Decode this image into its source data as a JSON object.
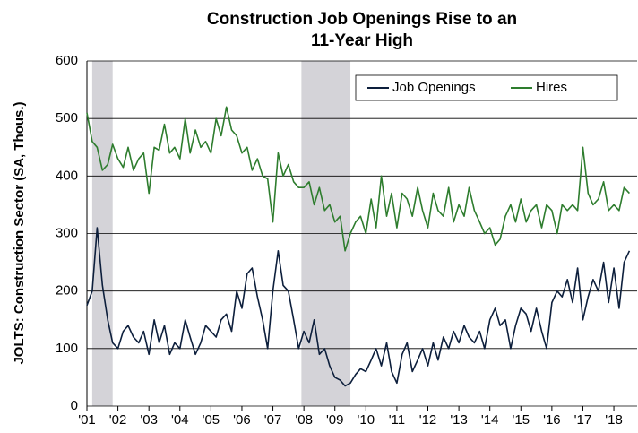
{
  "chart_data": {
    "type": "line",
    "title": [
      "Construction Job Openings Rise to an",
      "11-Year High"
    ],
    "y_label": "JOLTS: Construction Sector (SA, Thous.)",
    "x": [
      2001,
      2001.17,
      2001.33,
      2001.5,
      2001.67,
      2001.83,
      2002,
      2002.17,
      2002.33,
      2002.5,
      2002.67,
      2002.83,
      2003,
      2003.17,
      2003.33,
      2003.5,
      2003.67,
      2003.83,
      2004,
      2004.17,
      2004.33,
      2004.5,
      2004.67,
      2004.83,
      2005,
      2005.17,
      2005.33,
      2005.5,
      2005.67,
      2005.83,
      2006,
      2006.17,
      2006.33,
      2006.5,
      2006.67,
      2006.83,
      2007,
      2007.17,
      2007.33,
      2007.5,
      2007.67,
      2007.83,
      2008,
      2008.17,
      2008.33,
      2008.5,
      2008.67,
      2008.83,
      2009,
      2009.17,
      2009.33,
      2009.5,
      2009.67,
      2009.83,
      2010,
      2010.17,
      2010.33,
      2010.5,
      2010.67,
      2010.83,
      2011,
      2011.17,
      2011.33,
      2011.5,
      2011.67,
      2011.83,
      2012,
      2012.17,
      2012.33,
      2012.5,
      2012.67,
      2012.83,
      2013,
      2013.17,
      2013.33,
      2013.5,
      2013.67,
      2013.83,
      2014,
      2014.17,
      2014.33,
      2014.5,
      2014.67,
      2014.83,
      2015,
      2015.17,
      2015.33,
      2015.5,
      2015.67,
      2015.83,
      2016,
      2016.17,
      2016.33,
      2016.5,
      2016.67,
      2016.83,
      2017,
      2017.17,
      2017.33,
      2017.5,
      2017.67,
      2017.83,
      2018,
      2018.17,
      2018.33,
      2018.5
    ],
    "series": [
      {
        "name": "Job Openings",
        "color": "#0d1f3c",
        "values": [
          175,
          200,
          310,
          210,
          150,
          110,
          100,
          130,
          140,
          120,
          110,
          130,
          90,
          150,
          110,
          140,
          90,
          110,
          100,
          150,
          120,
          90,
          110,
          140,
          130,
          120,
          150,
          160,
          130,
          200,
          170,
          230,
          240,
          190,
          150,
          100,
          200,
          270,
          210,
          200,
          150,
          100,
          130,
          110,
          150,
          90,
          100,
          70,
          50,
          45,
          35,
          40,
          55,
          65,
          60,
          80,
          100,
          70,
          110,
          60,
          40,
          90,
          110,
          60,
          80,
          100,
          70,
          110,
          80,
          120,
          100,
          130,
          110,
          140,
          120,
          110,
          130,
          100,
          150,
          170,
          140,
          150,
          100,
          140,
          170,
          160,
          130,
          170,
          130,
          100,
          180,
          200,
          190,
          220,
          180,
          240,
          150,
          190,
          220,
          200,
          250,
          180,
          240,
          170,
          250,
          270
        ]
      },
      {
        "name": "Hires",
        "color": "#2e7d2e",
        "values": [
          510,
          460,
          450,
          410,
          420,
          455,
          430,
          415,
          450,
          410,
          430,
          440,
          370,
          450,
          445,
          490,
          440,
          450,
          430,
          500,
          440,
          480,
          450,
          460,
          440,
          500,
          470,
          520,
          480,
          470,
          440,
          450,
          410,
          430,
          400,
          395,
          320,
          440,
          400,
          420,
          390,
          380,
          380,
          390,
          350,
          380,
          340,
          350,
          320,
          330,
          270,
          300,
          320,
          330,
          300,
          360,
          310,
          400,
          330,
          370,
          310,
          370,
          360,
          330,
          380,
          340,
          310,
          370,
          340,
          330,
          380,
          320,
          350,
          330,
          380,
          340,
          320,
          300,
          310,
          280,
          290,
          330,
          350,
          320,
          360,
          320,
          340,
          350,
          310,
          350,
          340,
          300,
          350,
          340,
          350,
          340,
          450,
          370,
          350,
          360,
          390,
          340,
          350,
          340,
          380,
          370
        ]
      }
    ],
    "recessions": [
      [
        2001.17,
        2001.83
      ],
      [
        2007.92,
        2009.5
      ]
    ],
    "recession_color": "#d4d3d8",
    "xlim": [
      2001,
      2018.75
    ],
    "xticks": [
      {
        "value": 2001,
        "label": "'01"
      },
      {
        "value": 2002,
        "label": "'02"
      },
      {
        "value": 2003,
        "label": "'03"
      },
      {
        "value": 2004,
        "label": "'04"
      },
      {
        "value": 2005,
        "label": "'05"
      },
      {
        "value": 2006,
        "label": "'06"
      },
      {
        "value": 2007,
        "label": "'07"
      },
      {
        "value": 2008,
        "label": "'08"
      },
      {
        "value": 2009,
        "label": "'09"
      },
      {
        "value": 2010,
        "label": "'10"
      },
      {
        "value": 2011,
        "label": "'11"
      },
      {
        "value": 2012,
        "label": "'12"
      },
      {
        "value": 2013,
        "label": "'13"
      },
      {
        "value": 2014,
        "label": "'14"
      },
      {
        "value": 2015,
        "label": "'15"
      },
      {
        "value": 2016,
        "label": "'16"
      },
      {
        "value": 2017,
        "label": "'17"
      },
      {
        "value": 2018,
        "label": "'18"
      }
    ],
    "ylim": [
      0,
      600
    ],
    "yticks": [
      0,
      100,
      200,
      300,
      400,
      500,
      600
    ],
    "grid": true,
    "legend": "top-right"
  }
}
